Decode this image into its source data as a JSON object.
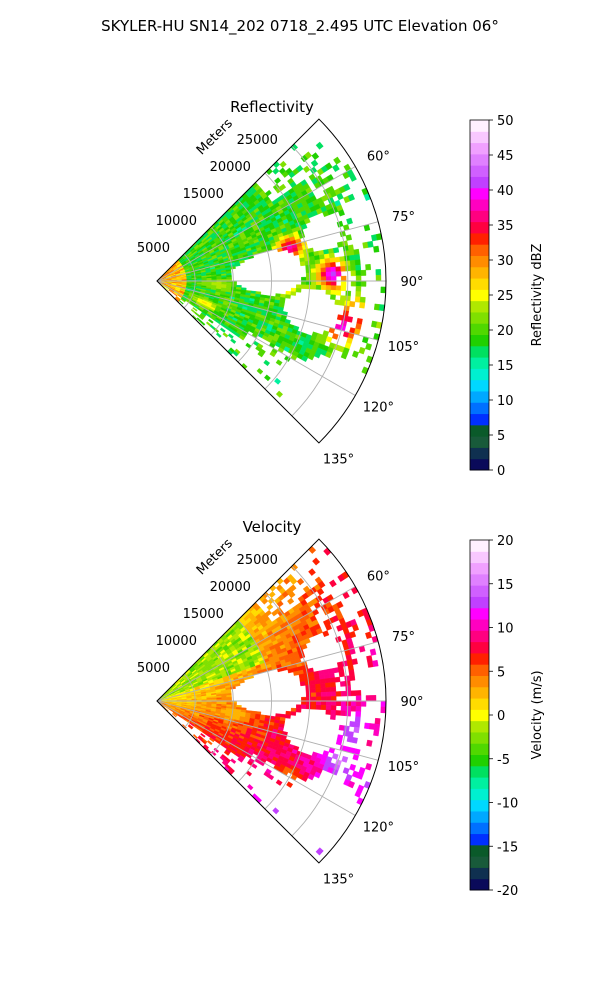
{
  "figure": {
    "suptitle": "SKYLER-HU  SN14_202  0718_2.495 UTC Elevation 06°"
  },
  "chart_data": [
    {
      "type": "heatmap",
      "projection": "polar-sector",
      "title": "Reflectivity",
      "range_label": "Meters",
      "theta_range_deg": [
        45,
        135
      ],
      "r_max_m": 30000,
      "r_ticks": [
        5000,
        10000,
        15000,
        20000,
        25000
      ],
      "theta_ticks_deg": [
        60,
        75,
        90,
        105,
        120,
        135
      ],
      "theta_tick_labels": [
        "60°",
        "75°",
        "90°",
        "105°",
        "120°",
        "135°"
      ],
      "colorbar": {
        "label": "Reflectivity dBZ",
        "vmin": 0,
        "vmax": 50,
        "ticks": [
          0,
          5,
          10,
          15,
          20,
          25,
          30,
          35,
          40,
          45,
          50
        ],
        "colors": [
          "#0a0a5a",
          "#0f3050",
          "#185a3a",
          "#0a5a2a",
          "#0030ff",
          "#0070ff",
          "#00a8ff",
          "#00d8ff",
          "#00f0d0",
          "#00f0a0",
          "#00e060",
          "#20d000",
          "#50d800",
          "#80e000",
          "#b0e800",
          "#ffff00",
          "#ffdc00",
          "#ffb400",
          "#ff8c00",
          "#ff6000",
          "#ff2000",
          "#ff0040",
          "#ff0080",
          "#ff00c0",
          "#ff00ff",
          "#c040ff",
          "#d060ff",
          "#e080ff",
          "#f0a0ff",
          "#f8c8ff",
          "#fff0ff"
        ]
      },
      "features": [
        {
          "theta": 88,
          "r": 23000,
          "level": 42
        },
        {
          "theta": 76,
          "r": 18000,
          "level": 38
        },
        {
          "theta": 104,
          "r": 25000,
          "level": 40
        },
        {
          "theta": 100,
          "r": 26500,
          "level": 36
        },
        {
          "theta": 92,
          "r": 17000,
          "level": 30
        },
        {
          "theta": 115,
          "r": 7000,
          "level": 26
        },
        {
          "theta": 93,
          "r": 8000,
          "level": 24
        }
      ]
    },
    {
      "type": "heatmap",
      "projection": "polar-sector",
      "title": "Velocity",
      "range_label": "Meters",
      "theta_range_deg": [
        45,
        135
      ],
      "r_max_m": 30000,
      "r_ticks": [
        5000,
        10000,
        15000,
        20000,
        25000
      ],
      "theta_ticks_deg": [
        60,
        75,
        90,
        105,
        120,
        135
      ],
      "theta_tick_labels": [
        "60°",
        "75°",
        "90°",
        "105°",
        "120°",
        "135°"
      ],
      "colorbar": {
        "label": "Velocity (m/s)",
        "vmin": -20,
        "vmax": 20,
        "ticks": [
          -20,
          -15,
          -10,
          -5,
          0,
          5,
          10,
          15,
          20
        ],
        "colors": [
          "#0a0a5a",
          "#0f3050",
          "#185a3a",
          "#0a5a2a",
          "#0030ff",
          "#0070ff",
          "#00a8ff",
          "#00d8ff",
          "#00f0d0",
          "#00f0a0",
          "#00e060",
          "#20d000",
          "#50d800",
          "#80e000",
          "#b0e800",
          "#ffff00",
          "#ffdc00",
          "#ffb400",
          "#ff8c00",
          "#ff6000",
          "#ff2000",
          "#ff0040",
          "#ff0080",
          "#ff00c0",
          "#ff00ff",
          "#c040ff",
          "#d060ff",
          "#e080ff",
          "#f0a0ff",
          "#f8c8ff",
          "#fff0ff"
        ]
      },
      "features": [
        {
          "theta": 60,
          "r": 8000,
          "level": -2
        },
        {
          "theta": 80,
          "r": 22000,
          "level": 9
        },
        {
          "theta": 98,
          "r": 26000,
          "level": 14
        },
        {
          "theta": 108,
          "r": 25000,
          "level": 15
        },
        {
          "theta": 120,
          "r": 20000,
          "level": 4
        },
        {
          "theta": 100,
          "r": 10000,
          "level": 2
        }
      ]
    }
  ]
}
